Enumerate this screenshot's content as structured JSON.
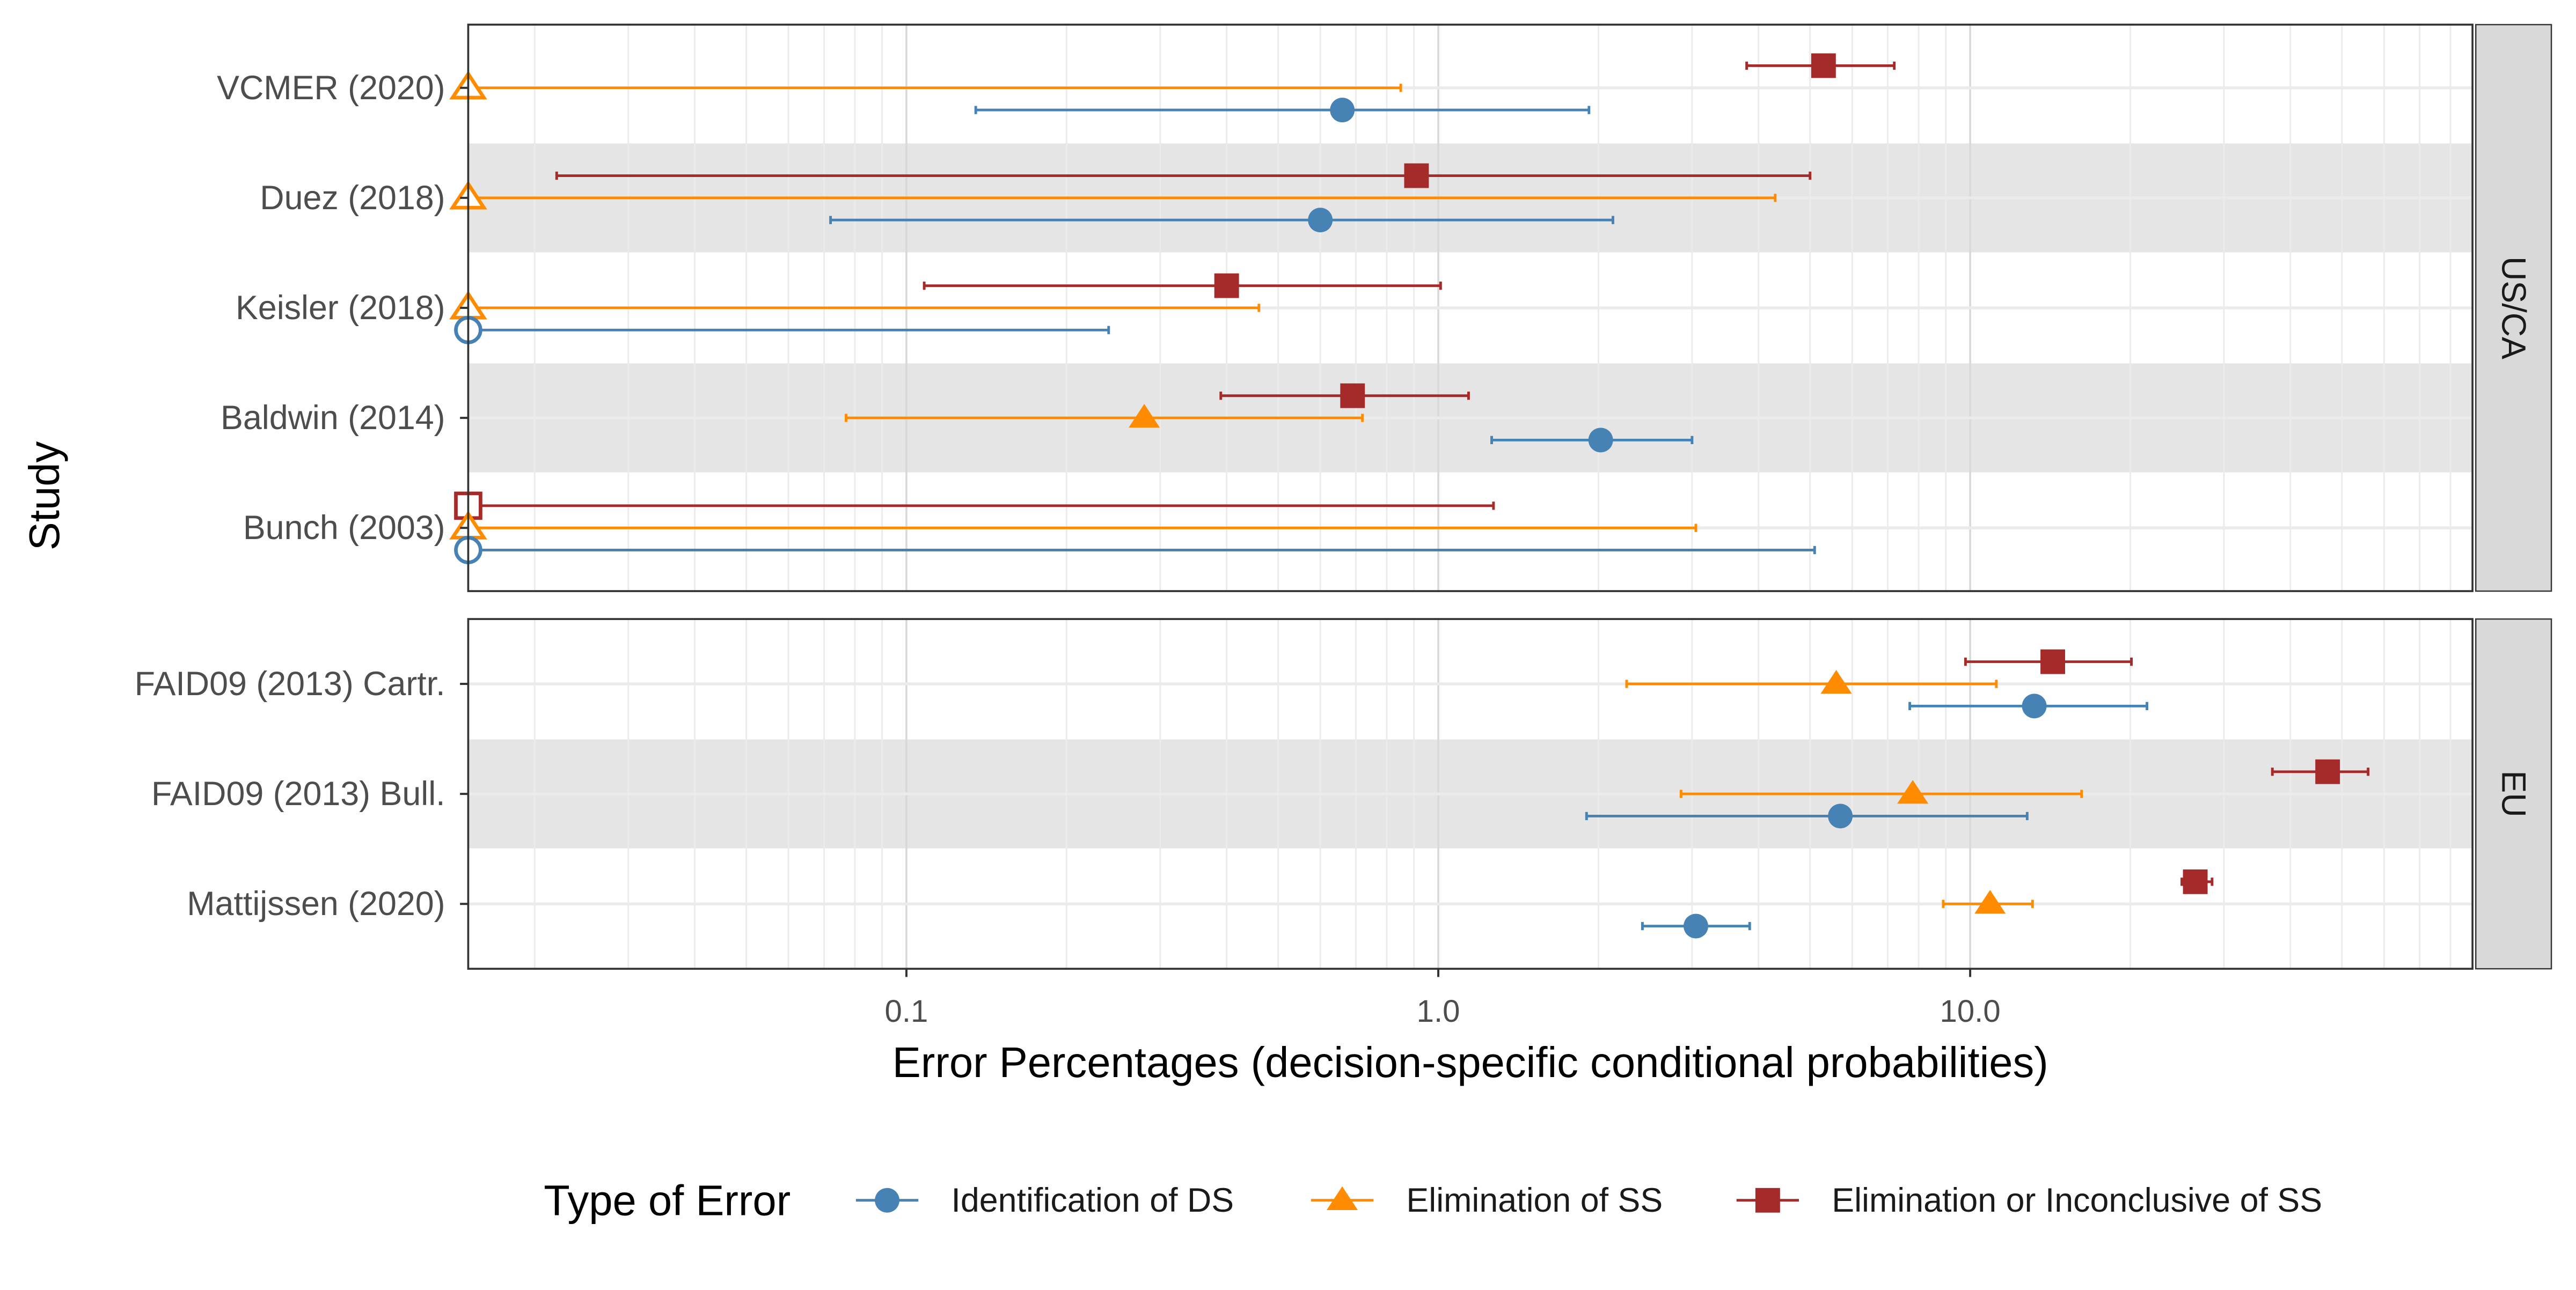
{
  "chart_data": {
    "type": "errorbar",
    "ylabel": "Study",
    "xlabel": "Error Percentages (decision-specific conditional probabilities)",
    "x_scale": "log",
    "xlim": [
      0.015,
      88
    ],
    "x_ticks": [
      {
        "value": 0.1,
        "label": "0.1"
      },
      {
        "value": 1.0,
        "label": "1.0"
      },
      {
        "value": 10.0,
        "label": "10.0"
      }
    ],
    "legend": {
      "title": "Type of Error",
      "position": "bottom",
      "entries": [
        {
          "key": "ds",
          "label": "Identification of DS",
          "color": "#4682B4",
          "shape": "circle"
        },
        {
          "key": "ss",
          "label": "Elimination of SS",
          "color": "#FF8C00",
          "shape": "triangle"
        },
        {
          "key": "eiss",
          "label": "Elimination or Inconclusive of SS",
          "color": "#A52A2A",
          "shape": "square"
        }
      ]
    },
    "panels": [
      {
        "strip": "US/CA",
        "studies": [
          {
            "label": "VCMER (2020)",
            "series": [
              {
                "key": "eiss",
                "estimate": 5.3,
                "lower": 3.8,
                "upper": 7.2,
                "open": false
              },
              {
                "key": "ss",
                "estimate": 0.015,
                "lower": 0.015,
                "upper": 0.85,
                "open": true
              },
              {
                "key": "ds",
                "estimate": 0.66,
                "lower": 0.135,
                "upper": 1.92,
                "open": false
              }
            ]
          },
          {
            "label": "Duez (2018)",
            "series": [
              {
                "key": "eiss",
                "estimate": 0.91,
                "lower": 0.022,
                "upper": 5.0,
                "open": false
              },
              {
                "key": "ss",
                "estimate": 0.015,
                "lower": 0.015,
                "upper": 4.3,
                "open": true
              },
              {
                "key": "ds",
                "estimate": 0.6,
                "lower": 0.072,
                "upper": 2.13,
                "open": false
              }
            ]
          },
          {
            "label": "Keisler (2018)",
            "series": [
              {
                "key": "eiss",
                "estimate": 0.4,
                "lower": 0.108,
                "upper": 1.01,
                "open": false
              },
              {
                "key": "ss",
                "estimate": 0.015,
                "lower": 0.015,
                "upper": 0.46,
                "open": true
              },
              {
                "key": "ds",
                "estimate": 0.015,
                "lower": 0.015,
                "upper": 0.24,
                "open": true
              }
            ]
          },
          {
            "label": "Baldwin (2014)",
            "series": [
              {
                "key": "eiss",
                "estimate": 0.69,
                "lower": 0.39,
                "upper": 1.14,
                "open": false
              },
              {
                "key": "ss",
                "estimate": 0.28,
                "lower": 0.077,
                "upper": 0.72,
                "open": false
              },
              {
                "key": "ds",
                "estimate": 2.02,
                "lower": 1.26,
                "upper": 3.0,
                "open": false
              }
            ]
          },
          {
            "label": "Bunch (2003)",
            "series": [
              {
                "key": "eiss",
                "estimate": 0.015,
                "lower": 0.015,
                "upper": 1.27,
                "open": true
              },
              {
                "key": "ss",
                "estimate": 0.015,
                "lower": 0.015,
                "upper": 3.05,
                "open": true
              },
              {
                "key": "ds",
                "estimate": 0.015,
                "lower": 0.015,
                "upper": 5.1,
                "open": true
              }
            ]
          }
        ]
      },
      {
        "strip": "EU",
        "studies": [
          {
            "label": "FAID09 (2013) Cartr.",
            "series": [
              {
                "key": "eiss",
                "estimate": 14.3,
                "lower": 9.8,
                "upper": 20.1,
                "open": false
              },
              {
                "key": "ss",
                "estimate": 5.6,
                "lower": 2.26,
                "upper": 11.2,
                "open": false
              },
              {
                "key": "ds",
                "estimate": 13.2,
                "lower": 7.7,
                "upper": 21.5,
                "open": false
              }
            ]
          },
          {
            "label": "FAID09 (2013) Bull.",
            "series": [
              {
                "key": "eiss",
                "estimate": 47.0,
                "lower": 37.0,
                "upper": 56.0,
                "open": false
              },
              {
                "key": "ss",
                "estimate": 7.8,
                "lower": 2.86,
                "upper": 16.2,
                "open": false
              },
              {
                "key": "ds",
                "estimate": 5.7,
                "lower": 1.9,
                "upper": 12.8,
                "open": false
              }
            ]
          },
          {
            "label": "Mattijssen (2020)",
            "series": [
              {
                "key": "eiss",
                "estimate": 26.5,
                "lower": 25.0,
                "upper": 28.5,
                "open": false
              },
              {
                "key": "ss",
                "estimate": 10.9,
                "lower": 8.9,
                "upper": 13.1,
                "open": false
              },
              {
                "key": "ds",
                "estimate": 3.05,
                "lower": 2.42,
                "upper": 3.85,
                "open": false
              }
            ]
          }
        ]
      }
    ]
  }
}
